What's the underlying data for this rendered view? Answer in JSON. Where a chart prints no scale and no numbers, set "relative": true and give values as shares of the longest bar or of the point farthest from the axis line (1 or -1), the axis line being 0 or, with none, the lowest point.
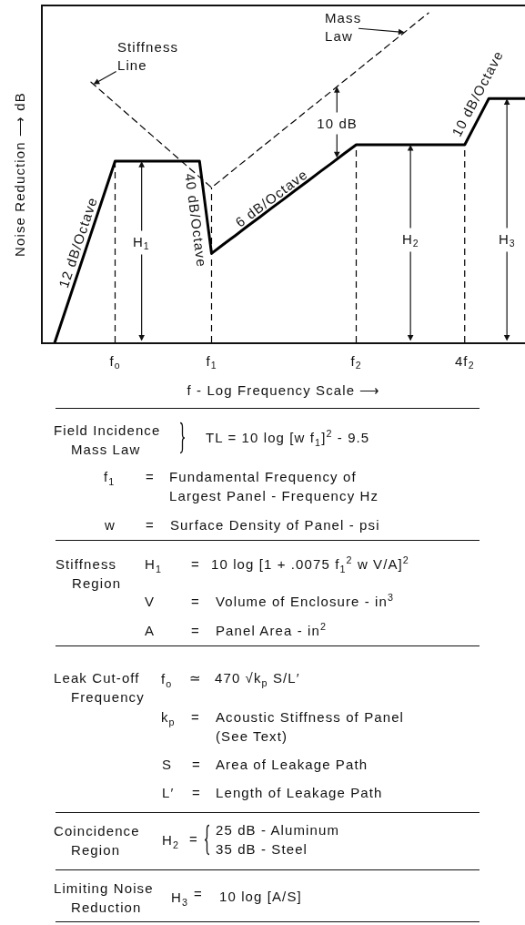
{
  "chart_data": {
    "type": "line",
    "relative": true,
    "xlabel": "f - Log Frequency Scale ⟶",
    "ylabel": "Noise Reduction ⟶ dB",
    "categories": [
      null,
      null,
      null,
      null,
      null,
      null,
      "f$_{o}$",
      null,
      null,
      null,
      null,
      null,
      null,
      null,
      "f$_{1}$",
      null,
      null,
      null,
      null,
      null,
      null,
      null,
      null,
      null,
      null,
      null,
      "f$_{2}$",
      null,
      null,
      null,
      null,
      null,
      null,
      null,
      null,
      "4f$_{2}$",
      null,
      null,
      null,
      null,
      null
    ],
    "series": [
      {
        "color": "#000000",
        "line_style": "solid",
        "values": [
          null,
          0,
          0.11,
          0.22,
          0.33,
          0.44,
          0.55,
          0.55,
          0.55,
          0.55,
          0.55,
          0.55,
          0.55,
          0.55,
          0.27,
          0.298,
          0.325,
          0.353,
          0.38,
          0.408,
          0.435,
          0.463,
          0.49,
          0.518,
          0.545,
          0.573,
          0.6,
          0.6,
          0.6,
          0.6,
          0.6,
          0.6,
          0.6,
          0.6,
          0.6,
          0.6,
          0.67,
          0.74,
          0.74,
          0.74,
          0.74
        ]
      },
      {
        "color": "#000000",
        "line_style": "dashed",
        "values": [
          null,
          null,
          null,
          null,
          0.79,
          0.758,
          0.726,
          0.694,
          0.662,
          0.63,
          0.598,
          0.566,
          0.534,
          0.502,
          0.47,
          0.499,
          0.529,
          0.558,
          0.588,
          0.617,
          0.647,
          0.676,
          0.706,
          0.735,
          0.764,
          0.794,
          0.823,
          0.853,
          0.882,
          0.912,
          0.941,
          0.971,
          1,
          null,
          null,
          null,
          null,
          null,
          null,
          null,
          null
        ]
      }
    ],
    "ref_lines": [
      {
        "axis": "x",
        "value": "f$_{o}$",
        "color": "#000000",
        "line_style": "dashed"
      },
      {
        "axis": "x",
        "value": "f$_{1}$",
        "color": "#000000",
        "line_style": "dashed"
      },
      {
        "axis": "x",
        "value": "f$_{2}$",
        "color": "#000000",
        "line_style": "dashed"
      },
      {
        "axis": "x",
        "value": "4f$_{2}$",
        "color": "#000000",
        "line_style": "dashed"
      }
    ],
    "annotations": [
      "Stiffness\nLine",
      "Mass\nLaw",
      "12 dB/Octave",
      "40 dB/Octave",
      "6 dB/Octave",
      "10 dB/Octave",
      "10 dB",
      "H$_{1}$",
      "H$_{2}$",
      "H$_{3}$",
      "Field Incidence\nMass Law",
      "TL = 10 log [w f$_{1}$]$^{2}$ - 9.5",
      "f$_{1}$",
      "=",
      "Fundamental Frequency of\nLargest Panel - Frequency Hz",
      "w",
      "=",
      "Surface Density of Panel - psi",
      "Stiffness\nRegion",
      "H$_{1}$",
      "=",
      "10 log [1 + .0075 f$_{1}$$^{2}$ w V/A]$^{2}$",
      "V",
      "=",
      "Volume of Enclosure - in$^{3}$",
      "A",
      "=",
      "Panel Area - in$^{2}$",
      "Leak Cut-off\nFrequency",
      "f$_{o}$",
      "≃",
      "470 √k$_{p}$ S/L′",
      "k$_{p}$",
      "=",
      "Acoustic Stiffness of Panel\n(See Text)",
      "S",
      "=",
      "Area of Leakage Path",
      "L′",
      "=",
      "Length of Leakage Path",
      "Coincidence\nRegion",
      "H$_{2}$",
      "=",
      "25 dB - Aluminum\n35 dB - Steel",
      "Limiting Noise\nReduction",
      "H$_{3}$",
      "=",
      "10 log [A/S]"
    ]
  }
}
